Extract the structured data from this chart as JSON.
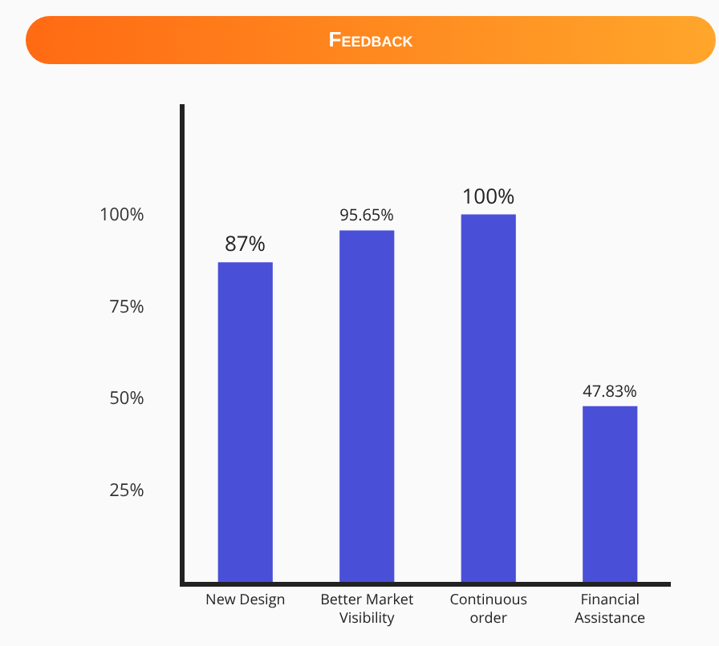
{
  "chart_data": {
    "type": "bar",
    "title": "Feedback",
    "categories": [
      "New Design",
      "Better Market Visibility",
      "Continuous order",
      "Financial Assistance"
    ],
    "values": [
      87,
      95.65,
      100,
      47.83
    ],
    "value_labels": [
      "87%",
      "95.65%",
      "100%",
      "47.83%"
    ],
    "color": "#4a4fd8",
    "ylim": [
      0,
      130
    ],
    "yticks": [
      {
        "value": 25,
        "label": "25%"
      },
      {
        "value": 50,
        "label": "50%"
      },
      {
        "value": 75,
        "label": "75%"
      },
      {
        "value": 100,
        "label": "100%"
      }
    ],
    "grid": false,
    "legend": false
  }
}
